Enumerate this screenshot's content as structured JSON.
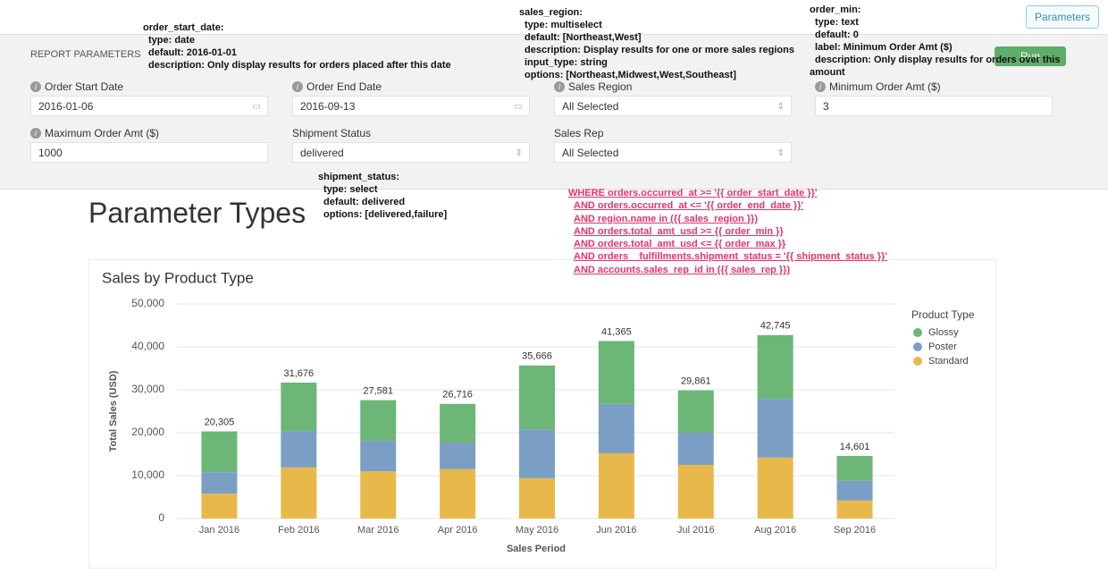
{
  "topbar": {
    "button": "Parameters"
  },
  "panel": {
    "heading": "REPORT PARAMETERS",
    "run_button": "Run",
    "fields": [
      {
        "label": "Order Start Date",
        "value": "2016-01-06",
        "info": true,
        "date": true
      },
      {
        "label": "Order End Date",
        "value": "2016-09-13",
        "info": true,
        "date": true
      },
      {
        "label": "Sales Region",
        "value": "All Selected",
        "info": true,
        "select": true
      },
      {
        "label": "Minimum Order Amt ($)",
        "value": "3",
        "info": true
      },
      {
        "label": "Maximum Order Amt ($)",
        "value": "1000",
        "info": true
      },
      {
        "label": "Shipment Status",
        "value": "delivered",
        "select": true
      },
      {
        "label": "Sales Rep",
        "value": "All Selected",
        "select": true
      }
    ]
  },
  "annotations": [
    {
      "lines": [
        "order_start_date:",
        "type: date",
        "default: 2016-01-01",
        "description: Only display results for orders placed after this date"
      ]
    },
    {
      "lines": [
        "sales_region:",
        "type: multiselect",
        "default: [Northeast,West]",
        "description: Display results for one or more sales regions",
        "input_type: string",
        "options: [Northeast,Midwest,West,Southeast]"
      ]
    },
    {
      "lines": [
        "order_min:",
        "type: text",
        "default: 0",
        "label: Minimum Order Amt ($)",
        "description: Only display results for orders over this"
      ],
      "continuation": "amount"
    },
    {
      "lines": [
        "shipment_status:",
        "type: select",
        "default: delivered",
        "options: [delivered,failure]"
      ]
    }
  ],
  "sql": [
    "WHERE orders.occurred_at >= '{{ order_start_date }}'",
    "AND orders.occurred_at <= '{{ order_end_date }}'",
    "AND region.name in ({{ sales_region }})",
    "AND orders.total_amt_usd >= {{ order_min }}",
    "AND orders.total_amt_usd <= {{ order_max }}",
    "AND orders__fulfillments.shipment_status = '{{ shipment_status }}'",
    "AND accounts.sales_rep_id in ({{ sales_rep }})"
  ],
  "page_title": "Parameter Types",
  "chart_data": {
    "type": "stacked_bar",
    "title": "Sales by Product Type",
    "x_label": "Sales Period",
    "y_label": "Total Sales (USD)",
    "categories": [
      "Jan 2016",
      "Feb 2016",
      "Mar 2016",
      "Apr 2016",
      "May 2016",
      "Jun 2016",
      "Jul 2016",
      "Aug 2016",
      "Sep 2016"
    ],
    "series": [
      {
        "name": "Standard",
        "color": "#e8b94a",
        "values": [
          5800,
          11900,
          11000,
          11500,
          9400,
          15200,
          12500,
          14200,
          4200
        ]
      },
      {
        "name": "Poster",
        "color": "#7b9fc4",
        "values": [
          5000,
          8500,
          7100,
          6200,
          11400,
          11500,
          7500,
          13700,
          4600
        ]
      },
      {
        "name": "Glossy",
        "color": "#6cb678",
        "values": [
          9505,
          11276,
          9481,
          9016,
          14866,
          14665,
          9861,
          14845,
          5801
        ]
      }
    ],
    "totals": [
      20305,
      31676,
      27581,
      26716,
      35666,
      41365,
      29861,
      42745,
      14601
    ],
    "total_labels": [
      "20,305",
      "31,676",
      "27,581",
      "26,716",
      "35,666",
      "41,365",
      "29,861",
      "42,745",
      "14,601"
    ],
    "legend_title": "Product Type",
    "legend_order": [
      2,
      1,
      0
    ],
    "ylim": [
      0,
      50000
    ],
    "yticks": [
      0,
      {
        "value": 10000,
        "label": "10,000"
      },
      {
        "value": 20000,
        "label": "20,000"
      },
      {
        "value": 30000,
        "label": "30,000"
      },
      {
        "value": 40000,
        "label": "40,000"
      },
      {
        "value": 50000,
        "label": "50,000"
      }
    ],
    "grid": true
  }
}
